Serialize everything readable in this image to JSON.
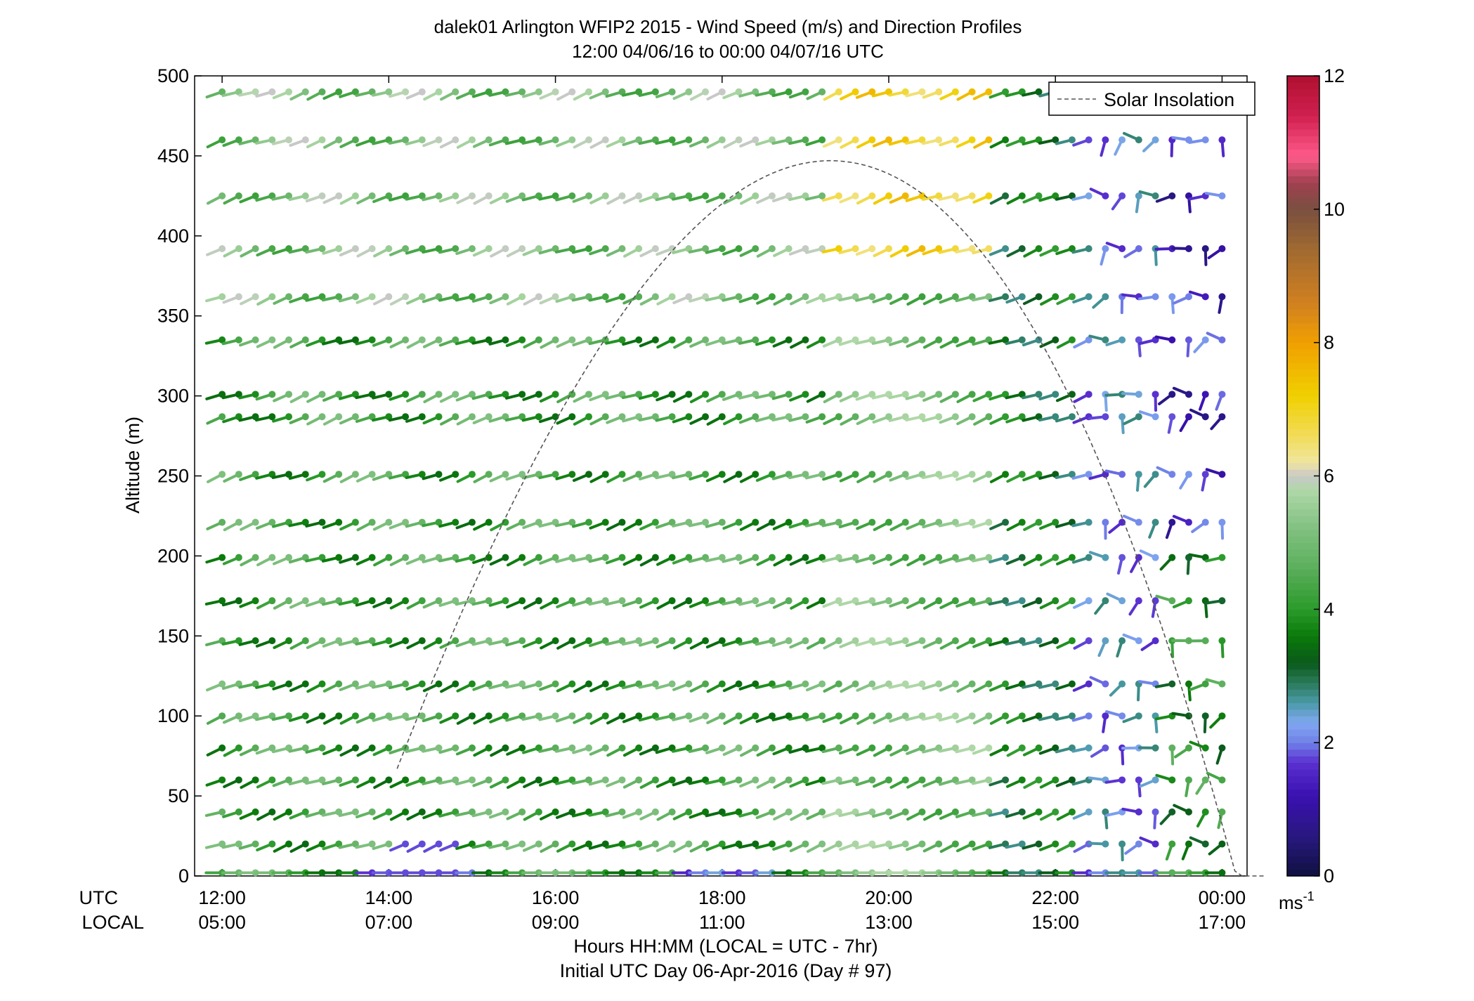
{
  "chart_data": {
    "type": "wind-barb-profile",
    "title": "dalek01 Arlington WFIP2 2015 - Wind Speed (m/s) and Direction Profiles",
    "subtitle": "12:00 04/06/16 to 00:00 04/07/16  UTC",
    "ylabel": "Altitude (m)",
    "xlabel": "Hours HH:MM  (LOCAL = UTC - 7hr)",
    "xlabel2": "Initial UTC Day 06-Apr-2016 (Day # 97)",
    "utc_label": "UTC",
    "local_label": "LOCAL",
    "units_label": "ms",
    "units_exp": "-1",
    "ylim": [
      0,
      500
    ],
    "y_ticks": [
      "0",
      "50",
      "100",
      "150",
      "200",
      "250",
      "300",
      "350",
      "400",
      "450",
      "500"
    ],
    "xlim_hours": [
      11.67,
      24.3
    ],
    "x_ticks_utc": [
      "12:00",
      "14:00",
      "16:00",
      "18:00",
      "20:00",
      "22:00",
      "00:00"
    ],
    "x_ticks_local": [
      "05:00",
      "07:00",
      "09:00",
      "11:00",
      "13:00",
      "15:00",
      "17:00"
    ],
    "x_tick_hours": [
      12,
      14,
      16,
      18,
      20,
      22,
      24
    ],
    "colorbar_range": [
      0,
      12
    ],
    "colorbar_ticks": [
      "0",
      "2",
      "4",
      "6",
      "8",
      "10",
      "12"
    ],
    "legend": {
      "label": "Solar Insolation",
      "location": "top-right"
    },
    "solar_curve": {
      "rise_hour": 14.1,
      "set_hour": 24.5,
      "peak_hour": 20.1,
      "peak_altitude": 447
    },
    "altitudes": [
      2,
      20,
      40,
      60,
      80,
      100,
      120,
      147,
      172,
      199,
      221,
      251,
      287,
      301,
      335,
      362,
      392,
      425,
      460,
      490
    ],
    "time_start_hour": 12.0,
    "time_step_hours": 0.2,
    "time_count": 61,
    "colors": {
      "colorbar": [
        "#101040",
        "#201870",
        "#3010a0",
        "#4a20c0",
        "#6a3ad8",
        "#7070e0",
        "#80a0f0",
        "#5a9ac0",
        "#3a8a9a",
        "#2a7a6a",
        "#1a6a3a",
        "#0a5a1a",
        "#0a7a0a",
        "#209020",
        "#40a040",
        "#60b060",
        "#80c080",
        "#a0d0a0",
        "#c0e0b0",
        "#d0d0d0",
        "#f0e080",
        "#f0d000",
        "#f0a000",
        "#d08020",
        "#a07030",
        "#805040",
        "#a04050",
        "#e05070",
        "#ff5080",
        "#d02050",
        "#b01030"
      ]
    }
  }
}
